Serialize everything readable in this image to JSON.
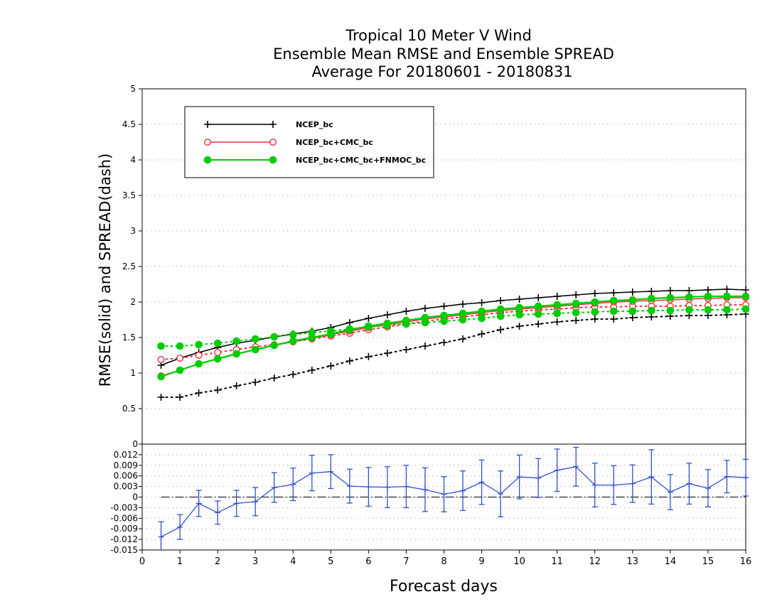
{
  "chart_data": {
    "type": "line",
    "title_lines": [
      "Tropical 10 Meter V Wind",
      "Ensemble Mean RMSE and Ensemble SPREAD",
      "Average For 20180601 - 20180831"
    ],
    "xlabel": "Forecast days",
    "ylabel": "RMSE(solid)  and  SPREAD(dash)",
    "xlim": [
      0,
      16
    ],
    "x_ticks": [
      "0",
      "1",
      "2",
      "3",
      "4",
      "5",
      "6",
      "7",
      "8",
      "9",
      "10",
      "11",
      "12",
      "13",
      "14",
      "15",
      "16"
    ],
    "top_panel": {
      "ylim": [
        0,
        5
      ],
      "y_ticks": [
        "0.5",
        "1",
        "1.5",
        "2",
        "2.5",
        "3",
        "3.5",
        "4",
        "4.5",
        "5"
      ],
      "grid": "horizontal dotted",
      "legend_position": "top-left",
      "x": [
        0.5,
        1,
        1.5,
        2,
        2.5,
        3,
        3.5,
        4,
        4.5,
        5,
        5.5,
        6,
        6.5,
        7,
        7.5,
        8,
        8.5,
        9,
        9.5,
        10,
        10.5,
        11,
        11.5,
        12,
        12.5,
        13,
        13.5,
        14,
        14.5,
        15,
        15.5,
        16
      ],
      "series": [
        {
          "name": "NCEP_bc",
          "color": "#000000",
          "marker": "plus",
          "rmse": [
            1.11,
            1.21,
            1.29,
            1.36,
            1.42,
            1.46,
            1.51,
            1.55,
            1.59,
            1.64,
            1.71,
            1.77,
            1.82,
            1.87,
            1.91,
            1.94,
            1.97,
            1.99,
            2.02,
            2.04,
            2.06,
            2.08,
            2.1,
            2.12,
            2.13,
            2.14,
            2.15,
            2.16,
            2.16,
            2.17,
            2.18,
            2.17
          ],
          "spread": [
            0.66,
            0.66,
            0.72,
            0.76,
            0.82,
            0.87,
            0.93,
            0.98,
            1.04,
            1.1,
            1.17,
            1.23,
            1.28,
            1.33,
            1.38,
            1.43,
            1.48,
            1.55,
            1.61,
            1.66,
            1.69,
            1.72,
            1.74,
            1.76,
            1.76,
            1.78,
            1.79,
            1.8,
            1.81,
            1.81,
            1.82,
            1.83
          ]
        },
        {
          "name": "NCEP_bc+CMC_bc",
          "color": "#e8323c",
          "marker": "open-circle",
          "rmse": [
            0.96,
            1.04,
            1.13,
            1.2,
            1.27,
            1.33,
            1.39,
            1.44,
            1.49,
            1.54,
            1.59,
            1.64,
            1.68,
            1.72,
            1.76,
            1.79,
            1.82,
            1.85,
            1.88,
            1.9,
            1.92,
            1.94,
            1.96,
            1.98,
            2.0,
            2.01,
            2.02,
            2.03,
            2.04,
            2.05,
            2.06,
            2.06
          ],
          "spread": [
            1.19,
            1.21,
            1.25,
            1.29,
            1.33,
            1.37,
            1.4,
            1.44,
            1.48,
            1.52,
            1.56,
            1.61,
            1.65,
            1.69,
            1.73,
            1.76,
            1.79,
            1.82,
            1.85,
            1.87,
            1.89,
            1.9,
            1.92,
            1.93,
            1.93,
            1.94,
            1.94,
            1.94,
            1.95,
            1.95,
            1.96,
            1.96
          ]
        },
        {
          "name": "NCEP_bc+CMC_bc+FNMOC_bc",
          "color": "#00cc00",
          "marker": "filled-circle",
          "rmse": [
            0.95,
            1.04,
            1.13,
            1.2,
            1.27,
            1.33,
            1.39,
            1.45,
            1.5,
            1.55,
            1.61,
            1.66,
            1.7,
            1.74,
            1.78,
            1.81,
            1.84,
            1.87,
            1.9,
            1.92,
            1.94,
            1.96,
            1.98,
            2.0,
            2.02,
            2.03,
            2.05,
            2.06,
            2.07,
            2.08,
            2.08,
            2.08
          ],
          "spread": [
            1.38,
            1.38,
            1.4,
            1.42,
            1.45,
            1.48,
            1.51,
            1.54,
            1.57,
            1.59,
            1.62,
            1.65,
            1.67,
            1.69,
            1.71,
            1.73,
            1.75,
            1.77,
            1.8,
            1.82,
            1.83,
            1.84,
            1.85,
            1.86,
            1.87,
            1.87,
            1.88,
            1.88,
            1.89,
            1.89,
            1.89,
            1.9
          ]
        }
      ]
    },
    "bottom_panel": {
      "ylim": [
        -0.015,
        0.015
      ],
      "y_ticks": [
        "-0.015",
        "-0.012",
        "-0.009",
        "-0.006",
        "-0.003",
        "0",
        "0.003",
        "0.006",
        "0.009",
        "0.012"
      ],
      "top_tick": "0",
      "grid": "horizontal dotted",
      "reference_line": 0,
      "series": {
        "color": "#3050d0",
        "x": [
          0.5,
          1,
          1.5,
          2,
          2.5,
          3,
          3.5,
          4,
          4.5,
          5,
          5.5,
          6,
          6.5,
          7,
          7.5,
          8,
          8.5,
          9,
          9.5,
          10,
          10.5,
          11,
          11.5,
          12,
          12.5,
          13,
          13.5,
          14,
          14.5,
          15,
          15.5,
          16
        ],
        "values": [
          -0.0113,
          -0.0085,
          -0.0018,
          -0.0044,
          -0.0018,
          -0.0013,
          0.0027,
          0.0036,
          0.0068,
          0.0072,
          0.0031,
          0.0029,
          0.0028,
          0.003,
          0.0021,
          0.0008,
          0.0018,
          0.0042,
          0.0009,
          0.0057,
          0.0054,
          0.0076,
          0.0086,
          0.0034,
          0.0034,
          0.0038,
          0.0057,
          0.0014,
          0.0038,
          0.0025,
          0.0058,
          0.0055
        ],
        "error": [
          0.0043,
          0.0035,
          0.0037,
          0.0033,
          0.0037,
          0.004,
          0.0042,
          0.0046,
          0.005,
          0.0048,
          0.0048,
          0.0055,
          0.0058,
          0.006,
          0.0062,
          0.005,
          0.0056,
          0.0063,
          0.0065,
          0.0062,
          0.0055,
          0.006,
          0.0055,
          0.0062,
          0.0055,
          0.0053,
          0.0077,
          0.005,
          0.0058,
          0.0053,
          0.0046,
          0.0052
        ]
      }
    }
  }
}
